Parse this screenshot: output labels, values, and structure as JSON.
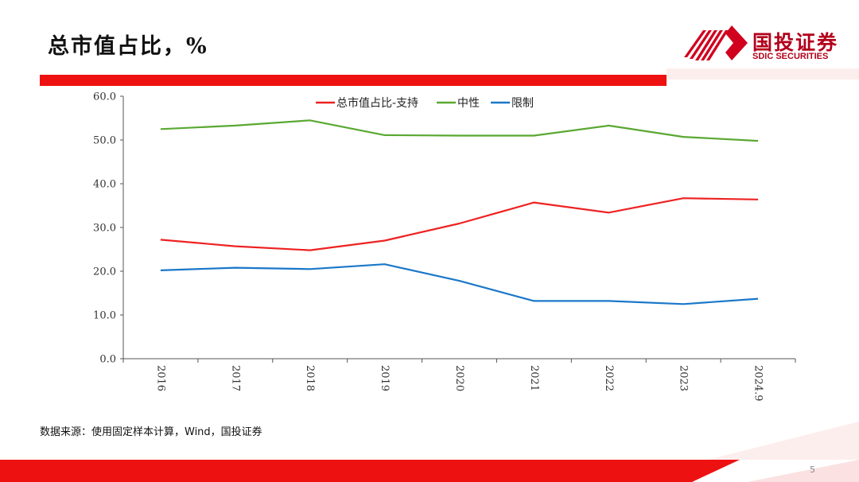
{
  "title": "总市值占比，%",
  "logo": {
    "cn": "国投证券",
    "en": "SDIC SECURITIES"
  },
  "source": "数据来源：使用固定样本计算，Wind，国投证券",
  "page_number": "5",
  "colors": {
    "accent_red": "#ee1111",
    "logo_red": "#b3001b"
  },
  "chart_data": {
    "type": "line",
    "title": "",
    "xlabel": "",
    "ylabel": "",
    "categories": [
      "2016",
      "2017",
      "2018",
      "2019",
      "2020",
      "2021",
      "2022",
      "2023",
      "2024.9"
    ],
    "ylim": [
      0,
      60
    ],
    "y_ticks": [
      "0.0",
      "10.0",
      "20.0",
      "30.0",
      "40.0",
      "50.0",
      "60.0"
    ],
    "grid": false,
    "legend_position": "top",
    "series": [
      {
        "name": "总市值占比-支持",
        "color": "#ee2222",
        "values": [
          27.2,
          25.7,
          24.8,
          27.0,
          30.9,
          35.7,
          33.4,
          36.7,
          36.4
        ]
      },
      {
        "name": "中性",
        "color": "#5aa832",
        "values": [
          52.5,
          53.3,
          54.5,
          51.1,
          51.0,
          51.0,
          53.3,
          50.7,
          49.8
        ]
      },
      {
        "name": "限制",
        "color": "#1a77c9",
        "values": [
          20.2,
          20.8,
          20.5,
          21.6,
          17.8,
          13.2,
          13.2,
          12.5,
          13.7
        ]
      }
    ]
  }
}
